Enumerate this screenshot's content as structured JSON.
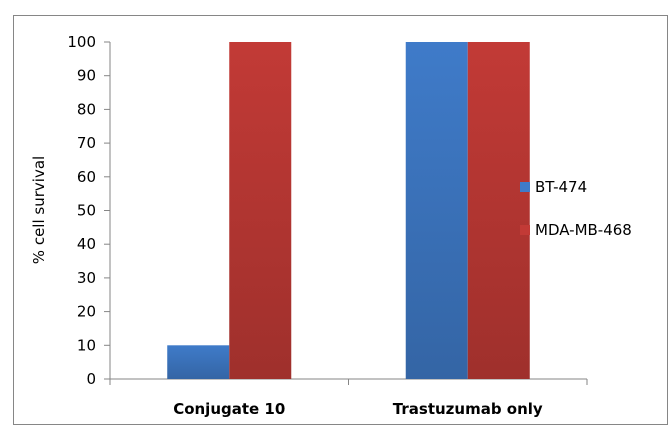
{
  "chart_data": {
    "type": "bar",
    "categories": [
      "Conjugate 10",
      "Trastuzumab only"
    ],
    "series": [
      {
        "name": "BT-474",
        "values": [
          10,
          100
        ],
        "color": "#3f7bc9"
      },
      {
        "name": "MDA-MB-468",
        "values": [
          100,
          100
        ],
        "color": "#c23a36"
      }
    ],
    "title": "",
    "xlabel": "",
    "ylabel": "% cell survival",
    "ylim": [
      0,
      100
    ],
    "yticks": [
      "0",
      "10",
      "20",
      "30",
      "40",
      "50",
      "60",
      "70",
      "80",
      "90",
      "100"
    ],
    "grid": false,
    "legend_position": "right"
  }
}
